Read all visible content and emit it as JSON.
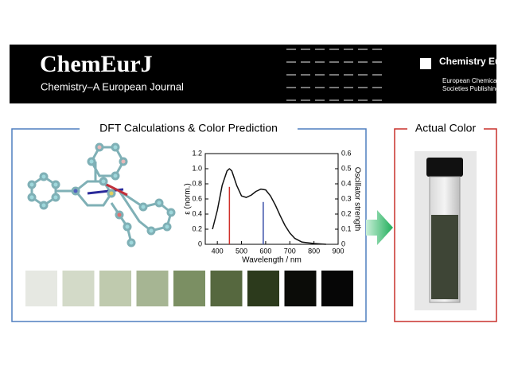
{
  "header": {
    "logo": "ChemEurJ",
    "journal": "Chemistry–A European Journal",
    "publisher": "Chemistry Europe",
    "publisher_sub": [
      "European Chemical",
      "Societies Publishing"
    ]
  },
  "panels": {
    "left_title": "DFT Calculations & Color Prediction",
    "right_title": "Actual Color"
  },
  "swatches": [
    "#e6e8e2",
    "#d3dac8",
    "#bfcaae",
    "#a6b593",
    "#7b8f63",
    "#56683f",
    "#2c3a1c",
    "#0b0c08",
    "#060606"
  ],
  "chart_data": {
    "type": "line",
    "x": [
      380,
      400,
      420,
      440,
      450,
      460,
      480,
      500,
      520,
      540,
      560,
      580,
      600,
      620,
      640,
      660,
      680,
      700,
      720,
      750,
      800,
      850
    ],
    "values": [
      0.2,
      0.45,
      0.78,
      0.97,
      1.0,
      0.97,
      0.78,
      0.64,
      0.62,
      0.65,
      0.7,
      0.73,
      0.72,
      0.64,
      0.52,
      0.38,
      0.25,
      0.15,
      0.08,
      0.03,
      0.01,
      0
    ],
    "color": "#111111",
    "sticks": {
      "axis": "y2",
      "x": [
        450,
        590
      ],
      "values": [
        0.38,
        0.28
      ],
      "colors": [
        "#d0302a",
        "#3a4fa8"
      ]
    },
    "xlabel": "Wavelength / nm",
    "ylabel": "ε (norm.)",
    "y2label": "Oscillator strength",
    "xlim": [
      350,
      900
    ],
    "xticks": [
      400,
      500,
      600,
      700,
      800,
      900
    ],
    "ylim": [
      0,
      1.2
    ],
    "yticks": [
      0,
      0.2,
      0.4,
      0.6,
      0.8,
      {
        "value": 1,
        "label": "1.0"
      },
      1.2
    ],
    "y2lim": [
      0,
      0.6
    ],
    "y2ticks": [
      0,
      0.1,
      0.2,
      0.3,
      0.4,
      0.5,
      0.6
    ]
  }
}
